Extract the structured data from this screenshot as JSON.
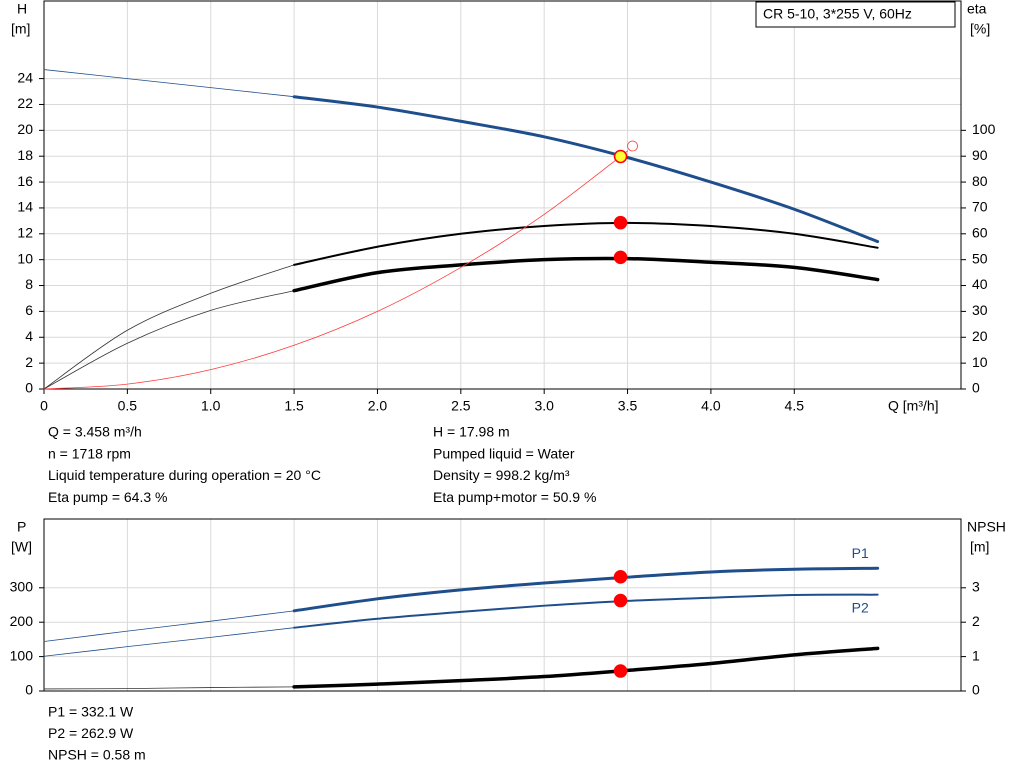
{
  "chart_data": [
    {
      "type": "line",
      "title": "CR 5-10, 3*255 V, 60Hz",
      "ylabel": "H",
      "yunit": "[m]",
      "y2label": "eta",
      "y2unit": "[%]",
      "xlabel": "Q [m³/h]",
      "x": [
        0,
        0.5,
        1.0,
        1.5,
        2.0,
        2.5,
        3.0,
        3.5,
        4.0,
        4.5,
        5.0
      ],
      "xlim": [
        0,
        5.5
      ],
      "xticks": [
        0,
        0.5,
        {
          "value": 1,
          "label": "1.0"
        },
        1.5,
        {
          "value": 2,
          "label": "2.0"
        },
        2.5,
        {
          "value": 3,
          "label": "3.0"
        },
        3.5,
        {
          "value": 4,
          "label": "4.0"
        },
        4.5
      ],
      "ylim": [
        0,
        30
      ],
      "yticks": [
        0,
        2,
        4,
        6,
        8,
        10,
        12,
        14,
        16,
        18,
        20,
        22,
        24
      ],
      "y2lim": [
        0,
        150
      ],
      "y2ticks": [
        0,
        10,
        20,
        30,
        40,
        50,
        60,
        70,
        80,
        90,
        100
      ],
      "grid": true,
      "series": [
        {
          "color": "#1f4e8c",
          "width": 0.8,
          "values": [
            24.7,
            24.0,
            23.3,
            22.6,
            null,
            null,
            null,
            null,
            null,
            null,
            null
          ]
        },
        {
          "color": "#1f4e8c",
          "width": 3,
          "values": [
            null,
            null,
            null,
            22.6,
            21.8,
            20.7,
            19.5,
            17.9,
            16.0,
            13.9,
            11.4
          ]
        },
        {
          "color": "#333333",
          "width": 0.8,
          "axis": "y2",
          "values": [
            0,
            22.7,
            37,
            48,
            null,
            null,
            null,
            null,
            null,
            null,
            null
          ]
        },
        {
          "color": "#000000",
          "width": 2,
          "axis": "y2",
          "values": [
            null,
            null,
            null,
            48,
            55,
            60,
            63,
            64.2,
            63,
            60,
            54.6
          ]
        },
        {
          "color": "#333333",
          "width": 0.8,
          "axis": "y2",
          "values": [
            0,
            17.7,
            30.4,
            38,
            null,
            null,
            null,
            null,
            null,
            null,
            null
          ]
        },
        {
          "color": "#000000",
          "width": 3.5,
          "axis": "y2",
          "values": [
            null,
            null,
            null,
            38,
            45,
            48,
            50,
            50.4,
            49,
            47,
            42.3
          ]
        },
        {
          "color": "#ff3b3b",
          "width": 0.8,
          "end_marker": true,
          "values": [
            0,
            0.38,
            1.5,
            3.38,
            6.0,
            9.4,
            13.5,
            18.4,
            null,
            null,
            null
          ]
        }
      ],
      "points": [
        {
          "x": 3.458,
          "y": 64.3,
          "axis": "y2",
          "color": "#ff0000",
          "edge": "#ff0000"
        },
        {
          "x": 3.458,
          "y": 50.9,
          "axis": "y2",
          "color": "#ff0000",
          "edge": "#ff0000"
        },
        {
          "x": 3.458,
          "y": 17.98,
          "color": "#ffff33",
          "edge": "#ff0000"
        }
      ],
      "info_left": [
        "Q = 3.458 m³/h",
        "n = 1718 rpm",
        "Liquid temperature during operation = 20 °C",
        "Eta pump = 64.3 %"
      ],
      "info_right": [
        "H = 17.98 m",
        "Pumped liquid = Water",
        "Density = 998.2 kg/m³",
        "Eta pump+motor = 50.9 %"
      ]
    },
    {
      "type": "line",
      "ylabel": "P",
      "yunit": "[W]",
      "y2label": "NPSH",
      "y2unit": "[m]",
      "x": [
        0,
        0.5,
        1.0,
        1.5,
        2.0,
        2.5,
        3.0,
        3.5,
        4.0,
        4.5,
        5.0
      ],
      "xlim": [
        0,
        5.5
      ],
      "ylim": [
        0,
        500
      ],
      "yticks": [
        0,
        100,
        200,
        300
      ],
      "y2lim": [
        0,
        5
      ],
      "y2ticks": [
        0,
        1,
        2,
        3
      ],
      "grid": true,
      "series": [
        {
          "color": "#1f4e8c",
          "width": 0.8,
          "values": [
            144,
            174,
            203,
            233,
            null,
            null,
            null,
            null,
            null,
            null,
            null
          ]
        },
        {
          "name": "P1",
          "color": "#1f4e8c",
          "width": 3,
          "values": [
            null,
            null,
            null,
            233,
            268,
            294,
            314,
            331,
            346,
            354,
            357
          ]
        },
        {
          "color": "#1f4e8c",
          "width": 0.8,
          "values": [
            101,
            129,
            156,
            184,
            null,
            null,
            null,
            null,
            null,
            null,
            null
          ]
        },
        {
          "name": "P2",
          "color": "#1f4e8c",
          "width": 2,
          "values": [
            null,
            null,
            null,
            184,
            210,
            230,
            248,
            262,
            271,
            279,
            280
          ]
        },
        {
          "color": "#333333",
          "width": 0.8,
          "axis": "y2",
          "values": [
            0.06,
            0.07,
            0.1,
            0.12,
            null,
            null,
            null,
            null,
            null,
            null,
            null
          ]
        },
        {
          "color": "#000000",
          "width": 3.5,
          "axis": "y2",
          "values": [
            null,
            null,
            null,
            0.12,
            0.2,
            0.3,
            0.42,
            0.6,
            0.8,
            1.05,
            1.24
          ]
        }
      ],
      "points": [
        {
          "x": 3.458,
          "y": 332.1,
          "color": "#ff0000",
          "edge": "#ff0000"
        },
        {
          "x": 3.458,
          "y": 262.9,
          "color": "#ff0000",
          "edge": "#ff0000"
        },
        {
          "x": 3.458,
          "y": 0.58,
          "axis": "y2",
          "color": "#ff0000",
          "edge": "#ff0000"
        }
      ],
      "info_left": [
        "P1 = 332.1 W",
        "P2 = 262.9 W",
        "NPSH = 0.58 m"
      ]
    }
  ]
}
